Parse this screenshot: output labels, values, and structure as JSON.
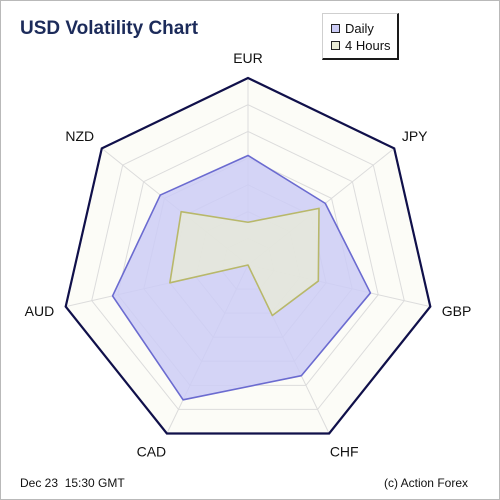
{
  "chart_data": {
    "type": "radar",
    "title": "USD Volatility Chart",
    "categories": [
      "EUR",
      "JPY",
      "GBP",
      "CHF",
      "CAD",
      "AUD",
      "NZD"
    ],
    "rlim": [
      0,
      7
    ],
    "grid": true,
    "legend_position": "top-right",
    "series": [
      {
        "name": "Daily",
        "values": [
          4.1,
          3.7,
          4.7,
          4.6,
          5.6,
          5.2,
          4.2
        ],
        "fill": "#ccccf6",
        "stroke": "#6b6bd0"
      },
      {
        "name": "4 Hours",
        "values": [
          1.6,
          3.4,
          2.7,
          2.1,
          0.0,
          3.0,
          3.2
        ],
        "fill": "#eaecd6",
        "stroke": "#b8b86a"
      }
    ]
  },
  "footer": {
    "timestamp": "Dec 23  15:30 GMT",
    "credit": "(c) Action Forex"
  },
  "colors": {
    "title": "#1c2b5a",
    "outer_border": "#10104a",
    "grid_line": "#dcdcdc",
    "grid_fill": "#fcfcf7"
  }
}
